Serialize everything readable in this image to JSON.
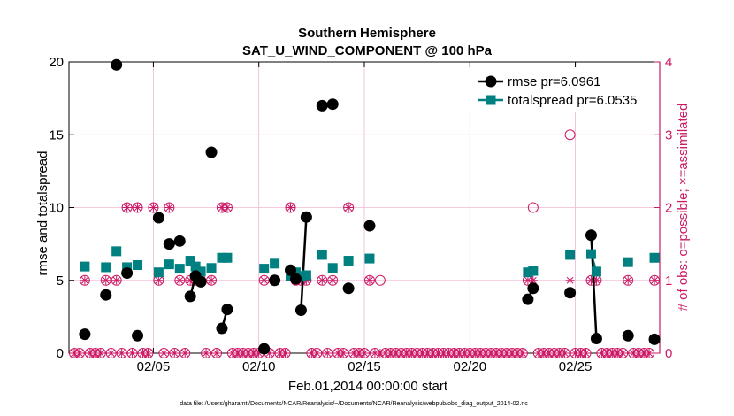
{
  "chart_data": {
    "type": "line",
    "title": "Southern Hemisphere",
    "subtitle": "SAT_U_WIND_COMPONENT @ 100 hPa",
    "xlabel": "Feb.01,2014 00:00:00 start",
    "ylabel": "rmse and totalspread",
    "ylabel_right": "# of obs: o=possible; ×=assimilated",
    "footnote": "data file: /Users/gharamti/Documents/NCAR/Reanalysis/~/Documents/NCAR/Reanalysis/webpub/obs_diag_output_2014-02.nc",
    "xlim": [
      1.0,
      29.0
    ],
    "ylim": [
      0,
      20
    ],
    "ylim_right": [
      0,
      4
    ],
    "x_ticks": [
      5,
      10,
      15,
      20,
      25
    ],
    "x_tick_labels": [
      "02/05",
      "02/10",
      "02/15",
      "02/20",
      "02/25"
    ],
    "y_ticks": [
      0,
      5,
      10,
      15,
      20
    ],
    "y_tick_labels": [
      "0",
      "5",
      "10",
      "15",
      "20"
    ],
    "y_ticks_right": [
      0,
      1,
      2,
      3,
      4
    ],
    "y_tick_labels_right": [
      "0",
      "1",
      "2",
      "3",
      "4"
    ],
    "grid": true,
    "legend_position": "top-right",
    "colors": {
      "rmse": "#000000",
      "totalspread": "#008080",
      "obs": "#cc1a66",
      "grid": "#f0b8d2"
    },
    "series": [
      {
        "name": "rmse pr=6.0961",
        "marker": "circle",
        "points": [
          [
            1.75,
            1.3
          ],
          [
            2.75,
            4.0
          ],
          [
            3.25,
            19.8
          ],
          [
            3.75,
            5.5
          ],
          [
            4.25,
            1.2
          ],
          [
            5.25,
            9.3
          ],
          [
            5.75,
            7.5
          ],
          [
            6.25,
            7.7
          ],
          [
            6.75,
            3.9
          ],
          [
            7.0,
            5.3
          ],
          [
            7.25,
            4.9
          ],
          [
            7.75,
            13.8
          ],
          [
            8.25,
            1.7
          ],
          [
            8.5,
            3.0
          ],
          [
            10.25,
            0.3
          ],
          [
            10.75,
            5.0
          ],
          [
            11.5,
            5.7
          ],
          [
            11.75,
            5.1
          ],
          [
            12.0,
            2.95
          ],
          [
            12.25,
            9.35
          ],
          [
            13.0,
            17.0
          ],
          [
            13.5,
            17.1
          ],
          [
            14.25,
            4.45
          ],
          [
            15.25,
            8.75
          ],
          [
            22.75,
            3.7
          ],
          [
            23.0,
            4.45
          ],
          [
            24.75,
            4.15
          ],
          [
            25.75,
            8.1
          ],
          [
            26.0,
            1.0
          ],
          [
            27.5,
            1.2
          ],
          [
            28.75,
            0.95
          ]
        ],
        "segments": [
          [
            6.75,
            7.25
          ],
          [
            8.25,
            8.5
          ],
          [
            12.0,
            12.25
          ],
          [
            22.75,
            23.0
          ],
          [
            25.75,
            26.0
          ]
        ]
      },
      {
        "name": "totalspread pr=6.0535",
        "marker": "square",
        "points": [
          [
            1.75,
            5.95
          ],
          [
            2.75,
            5.9
          ],
          [
            3.25,
            7.0
          ],
          [
            3.75,
            5.9
          ],
          [
            4.25,
            6.05
          ],
          [
            5.25,
            5.55
          ],
          [
            5.75,
            6.1
          ],
          [
            6.25,
            5.8
          ],
          [
            6.75,
            6.35
          ],
          [
            7.0,
            5.95
          ],
          [
            7.25,
            5.6
          ],
          [
            7.75,
            5.85
          ],
          [
            8.25,
            6.55
          ],
          [
            8.5,
            6.55
          ],
          [
            10.25,
            5.8
          ],
          [
            10.75,
            6.15
          ],
          [
            11.5,
            5.3
          ],
          [
            11.75,
            5.55
          ],
          [
            12.0,
            5.3
          ],
          [
            12.25,
            5.35
          ],
          [
            13.0,
            6.75
          ],
          [
            13.5,
            5.85
          ],
          [
            14.25,
            6.35
          ],
          [
            15.25,
            6.5
          ],
          [
            22.75,
            5.55
          ],
          [
            23.0,
            5.65
          ],
          [
            24.75,
            6.75
          ],
          [
            25.75,
            6.8
          ],
          [
            26.0,
            5.6
          ],
          [
            27.5,
            6.25
          ],
          [
            28.75,
            6.55
          ]
        ],
        "segments": [
          [
            6.75,
            7.25
          ],
          [
            8.25,
            8.5
          ],
          [
            12.0,
            12.25
          ],
          [
            22.75,
            23.0
          ],
          [
            25.75,
            26.0
          ]
        ]
      }
    ],
    "obs_possible": [
      [
        1.25,
        0
      ],
      [
        1.5,
        0
      ],
      [
        1.75,
        1
      ],
      [
        2.0,
        0
      ],
      [
        2.25,
        0
      ],
      [
        2.5,
        0
      ],
      [
        2.75,
        1
      ],
      [
        3.0,
        0
      ],
      [
        3.25,
        1
      ],
      [
        3.5,
        0
      ],
      [
        3.75,
        2
      ],
      [
        4.0,
        0
      ],
      [
        4.25,
        2
      ],
      [
        4.5,
        0
      ],
      [
        4.75,
        0
      ],
      [
        5.0,
        2
      ],
      [
        5.25,
        1
      ],
      [
        5.5,
        0
      ],
      [
        5.75,
        2
      ],
      [
        6.0,
        0
      ],
      [
        6.25,
        1
      ],
      [
        6.5,
        0
      ],
      [
        6.75,
        1
      ],
      [
        7.0,
        1
      ],
      [
        7.25,
        1
      ],
      [
        7.5,
        0
      ],
      [
        7.75,
        1
      ],
      [
        8.0,
        0
      ],
      [
        8.25,
        2
      ],
      [
        8.5,
        2
      ],
      [
        8.75,
        0
      ],
      [
        9.0,
        0
      ],
      [
        9.25,
        0
      ],
      [
        9.5,
        0
      ],
      [
        9.75,
        0
      ],
      [
        10.0,
        0
      ],
      [
        10.25,
        1
      ],
      [
        10.5,
        0
      ],
      [
        10.75,
        1
      ],
      [
        11.0,
        0
      ],
      [
        11.25,
        0
      ],
      [
        11.5,
        2
      ],
      [
        11.75,
        1
      ],
      [
        12.0,
        1
      ],
      [
        12.25,
        1
      ],
      [
        12.5,
        0
      ],
      [
        12.75,
        0
      ],
      [
        13.0,
        1
      ],
      [
        13.25,
        0
      ],
      [
        13.5,
        1
      ],
      [
        13.75,
        0
      ],
      [
        14.0,
        0
      ],
      [
        14.25,
        2
      ],
      [
        14.5,
        0
      ],
      [
        14.75,
        0
      ],
      [
        15.0,
        0
      ],
      [
        15.25,
        1
      ],
      [
        15.5,
        0
      ],
      [
        15.75,
        1
      ],
      [
        16.0,
        0
      ],
      [
        16.25,
        0
      ],
      [
        16.5,
        0
      ],
      [
        16.75,
        0
      ],
      [
        17.0,
        0
      ],
      [
        17.25,
        0
      ],
      [
        17.5,
        0
      ],
      [
        17.75,
        0
      ],
      [
        18.0,
        0
      ],
      [
        18.25,
        0
      ],
      [
        18.5,
        0
      ],
      [
        18.75,
        0
      ],
      [
        19.0,
        0
      ],
      [
        19.25,
        0
      ],
      [
        19.5,
        0
      ],
      [
        19.75,
        0
      ],
      [
        20.0,
        0
      ],
      [
        20.25,
        0
      ],
      [
        20.5,
        0
      ],
      [
        20.75,
        0
      ],
      [
        21.0,
        0
      ],
      [
        21.25,
        0
      ],
      [
        21.5,
        0
      ],
      [
        21.75,
        0
      ],
      [
        22.0,
        0
      ],
      [
        22.25,
        0
      ],
      [
        22.5,
        0
      ],
      [
        22.75,
        1
      ],
      [
        23.0,
        2
      ],
      [
        23.25,
        0
      ],
      [
        23.5,
        0
      ],
      [
        23.75,
        0
      ],
      [
        24.0,
        0
      ],
      [
        24.25,
        0
      ],
      [
        24.5,
        0
      ],
      [
        24.75,
        3
      ],
      [
        25.0,
        0
      ],
      [
        25.25,
        0
      ],
      [
        25.5,
        0
      ],
      [
        25.75,
        1
      ],
      [
        26.0,
        1
      ],
      [
        26.25,
        0
      ],
      [
        26.5,
        0
      ],
      [
        26.75,
        0
      ],
      [
        27.0,
        0
      ],
      [
        27.25,
        0
      ],
      [
        27.5,
        1
      ],
      [
        27.75,
        0
      ],
      [
        28.0,
        0
      ],
      [
        28.25,
        0
      ],
      [
        28.5,
        0
      ],
      [
        28.75,
        1
      ]
    ],
    "obs_assimilated": [
      [
        1.25,
        0
      ],
      [
        1.5,
        0
      ],
      [
        1.75,
        1
      ],
      [
        2.0,
        0
      ],
      [
        2.25,
        0
      ],
      [
        2.5,
        0
      ],
      [
        2.75,
        1
      ],
      [
        3.0,
        0
      ],
      [
        3.25,
        1
      ],
      [
        3.5,
        0
      ],
      [
        3.75,
        2
      ],
      [
        4.0,
        0
      ],
      [
        4.25,
        2
      ],
      [
        4.5,
        0
      ],
      [
        4.75,
        0
      ],
      [
        5.0,
        2
      ],
      [
        5.25,
        1
      ],
      [
        5.5,
        0
      ],
      [
        5.75,
        2
      ],
      [
        6.0,
        0
      ],
      [
        6.25,
        1
      ],
      [
        6.5,
        0
      ],
      [
        6.75,
        1
      ],
      [
        7.0,
        1
      ],
      [
        7.25,
        1
      ],
      [
        7.5,
        0
      ],
      [
        7.75,
        1
      ],
      [
        8.0,
        0
      ],
      [
        8.25,
        2
      ],
      [
        8.5,
        2
      ],
      [
        8.75,
        0
      ],
      [
        9.0,
        0
      ],
      [
        9.25,
        0
      ],
      [
        9.5,
        0
      ],
      [
        9.75,
        0
      ],
      [
        10.0,
        0
      ],
      [
        10.25,
        1
      ],
      [
        10.5,
        0
      ],
      [
        10.75,
        1
      ],
      [
        11.0,
        0
      ],
      [
        11.25,
        0
      ],
      [
        11.5,
        2
      ],
      [
        11.75,
        1
      ],
      [
        12.0,
        1
      ],
      [
        12.25,
        1
      ],
      [
        12.5,
        0
      ],
      [
        12.75,
        0
      ],
      [
        13.0,
        1
      ],
      [
        13.25,
        0
      ],
      [
        13.5,
        1
      ],
      [
        13.75,
        0
      ],
      [
        14.0,
        0
      ],
      [
        14.25,
        2
      ],
      [
        14.5,
        0
      ],
      [
        14.75,
        0
      ],
      [
        15.0,
        0
      ],
      [
        15.25,
        1
      ],
      [
        15.5,
        0
      ],
      [
        15.75,
        0
      ],
      [
        16.0,
        0
      ],
      [
        16.25,
        0
      ],
      [
        16.5,
        0
      ],
      [
        16.75,
        0
      ],
      [
        17.0,
        0
      ],
      [
        17.25,
        0
      ],
      [
        17.5,
        0
      ],
      [
        17.75,
        0
      ],
      [
        18.0,
        0
      ],
      [
        18.25,
        0
      ],
      [
        18.5,
        0
      ],
      [
        18.75,
        0
      ],
      [
        19.0,
        0
      ],
      [
        19.25,
        0
      ],
      [
        19.5,
        0
      ],
      [
        19.75,
        0
      ],
      [
        20.0,
        0
      ],
      [
        20.25,
        0
      ],
      [
        20.5,
        0
      ],
      [
        20.75,
        0
      ],
      [
        21.0,
        0
      ],
      [
        21.25,
        0
      ],
      [
        21.5,
        0
      ],
      [
        21.75,
        0
      ],
      [
        22.0,
        0
      ],
      [
        22.25,
        0
      ],
      [
        22.5,
        0
      ],
      [
        22.75,
        1
      ],
      [
        23.0,
        1
      ],
      [
        23.25,
        0
      ],
      [
        23.5,
        0
      ],
      [
        23.75,
        0
      ],
      [
        24.0,
        0
      ],
      [
        24.25,
        0
      ],
      [
        24.5,
        0
      ],
      [
        24.75,
        1
      ],
      [
        25.0,
        0
      ],
      [
        25.25,
        0
      ],
      [
        25.5,
        0
      ],
      [
        25.75,
        1
      ],
      [
        26.0,
        1
      ],
      [
        26.25,
        0
      ],
      [
        26.5,
        0
      ],
      [
        26.75,
        0
      ],
      [
        27.0,
        0
      ],
      [
        27.25,
        0
      ],
      [
        27.5,
        1
      ],
      [
        27.75,
        0
      ],
      [
        28.0,
        0
      ],
      [
        28.25,
        0
      ],
      [
        28.5,
        0
      ],
      [
        28.75,
        1
      ]
    ]
  }
}
